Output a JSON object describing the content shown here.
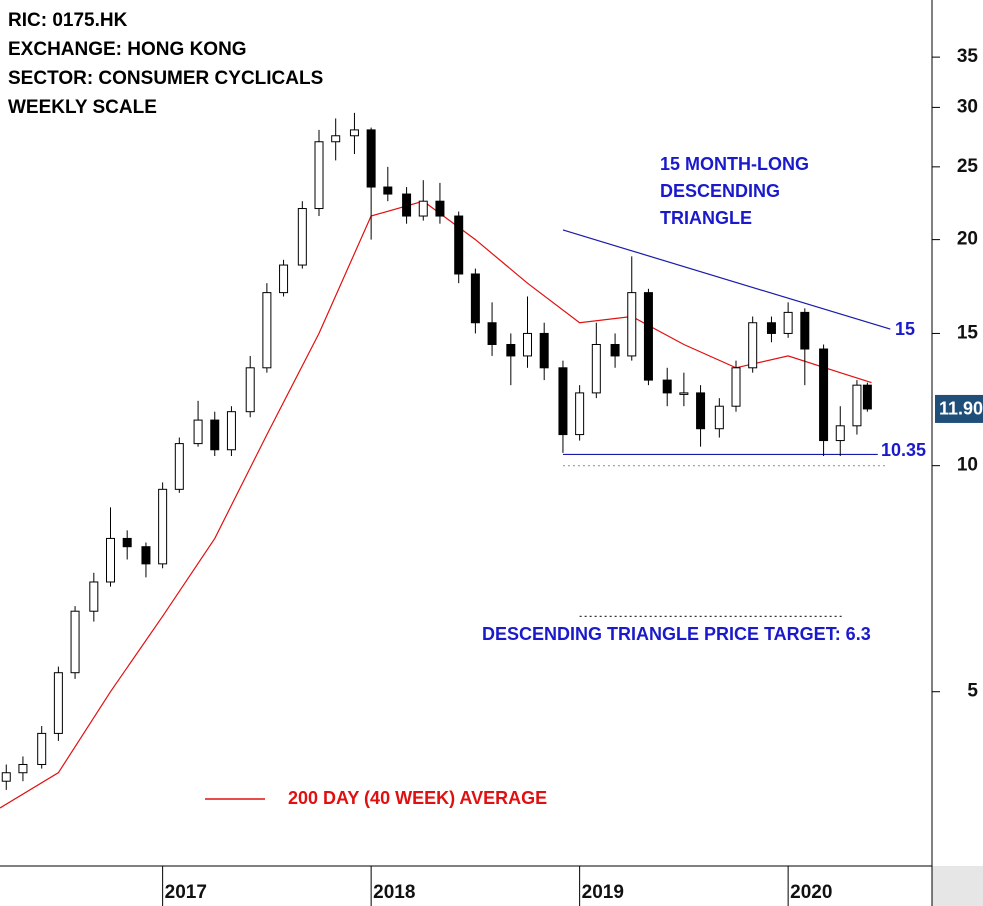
{
  "chart_data": {
    "type": "candlestick",
    "header": [
      "RIC: 0175.HK",
      "EXCHANGE: HONG KONG",
      "SECTOR: CONSUMER CYCLICALS",
      "WEEKLY SCALE"
    ],
    "log_scale": true,
    "xlim": [
      2016.22,
      2020.69
    ],
    "xticks": [
      2017,
      2018,
      2019,
      2020
    ],
    "ylim": [
      2.93,
      41.7
    ],
    "yticks": [
      5,
      10,
      15,
      20,
      25,
      30,
      35
    ],
    "up_color": "#ffffff",
    "down_color": "#000000",
    "x": [
      2016.25,
      2016.33,
      2016.42,
      2016.5,
      2016.58,
      2016.67,
      2016.75,
      2016.83,
      2016.92,
      2017.0,
      2017.08,
      2017.17,
      2017.25,
      2017.33,
      2017.42,
      2017.5,
      2017.58,
      2017.67,
      2017.75,
      2017.83,
      2017.92,
      2018.0,
      2018.08,
      2018.17,
      2018.25,
      2018.33,
      2018.42,
      2018.5,
      2018.58,
      2018.67,
      2018.75,
      2018.83,
      2018.92,
      2019.0,
      2019.08,
      2019.17,
      2019.25,
      2019.33,
      2019.42,
      2019.5,
      2019.58,
      2019.67,
      2019.75,
      2019.83,
      2019.92,
      2020.0,
      2020.08,
      2020.17,
      2020.25,
      2020.33,
      2020.38
    ],
    "open": [
      3.8,
      3.9,
      4.0,
      4.4,
      5.3,
      6.4,
      7.0,
      8.0,
      7.8,
      7.4,
      9.3,
      10.7,
      11.5,
      10.5,
      11.8,
      13.5,
      17.0,
      18.5,
      22.0,
      27.0,
      27.5,
      28.0,
      23.5,
      23.0,
      21.5,
      22.5,
      21.5,
      18.0,
      15.5,
      14.5,
      14.0,
      15.0,
      13.5,
      11.0,
      12.5,
      14.5,
      14.0,
      17.0,
      13.0,
      12.5,
      12.5,
      11.2,
      12.0,
      13.5,
      15.5,
      15.0,
      16.0,
      14.3,
      10.8,
      11.3,
      12.8
    ],
    "high": [
      4.0,
      4.1,
      4.5,
      5.4,
      6.5,
      7.2,
      8.8,
      8.2,
      7.9,
      9.5,
      10.9,
      12.2,
      11.8,
      12.0,
      14.0,
      17.5,
      18.8,
      22.5,
      28.0,
      29.0,
      29.5,
      28.2,
      25.0,
      23.5,
      24.0,
      23.8,
      21.8,
      18.3,
      16.5,
      15.0,
      16.8,
      15.5,
      13.8,
      12.8,
      15.5,
      15.0,
      19.0,
      17.2,
      13.5,
      13.3,
      12.8,
      12.3,
      13.8,
      15.8,
      15.8,
      16.5,
      16.2,
      14.5,
      12.0,
      13.0,
      12.9
    ],
    "low": [
      3.7,
      3.8,
      3.95,
      4.3,
      5.2,
      6.2,
      6.9,
      7.5,
      7.1,
      7.3,
      9.2,
      10.6,
      10.3,
      10.3,
      11.6,
      13.3,
      16.8,
      18.3,
      21.5,
      25.5,
      26.0,
      20.0,
      22.5,
      21.0,
      21.2,
      21.0,
      17.5,
      15.0,
      14.0,
      12.8,
      13.5,
      13.0,
      10.4,
      10.8,
      12.3,
      13.5,
      13.8,
      12.8,
      12.0,
      12.0,
      10.6,
      10.9,
      11.8,
      13.3,
      14.6,
      14.8,
      12.8,
      10.3,
      10.3,
      11.0,
      11.8
    ],
    "close": [
      3.9,
      4.0,
      4.4,
      5.3,
      6.4,
      7.0,
      8.0,
      7.8,
      7.4,
      9.3,
      10.7,
      11.5,
      10.5,
      11.8,
      13.5,
      17.0,
      18.5,
      22.0,
      27.0,
      27.5,
      28.0,
      23.5,
      23.0,
      21.5,
      22.5,
      21.5,
      18.0,
      15.5,
      14.5,
      14.0,
      15.0,
      13.5,
      11.0,
      12.5,
      14.5,
      14.0,
      17.0,
      13.0,
      12.5,
      12.5,
      11.2,
      12.0,
      13.5,
      15.5,
      15.0,
      16.0,
      14.3,
      10.8,
      11.3,
      12.8,
      11.9
    ],
    "last_price_label": "11.90",
    "average": {
      "name": "200 DAY (40 WEEK) AVERAGE",
      "color": "#e01010",
      "x": [
        2016.22,
        2016.5,
        2016.75,
        2017.0,
        2017.25,
        2017.5,
        2017.75,
        2018.0,
        2018.25,
        2018.5,
        2018.75,
        2019.0,
        2019.25,
        2019.5,
        2019.75,
        2020.0,
        2020.25,
        2020.4
      ],
      "values": [
        3.5,
        3.9,
        5.0,
        6.3,
        8.0,
        11.0,
        15.0,
        21.5,
        22.5,
        20.0,
        17.5,
        15.5,
        15.8,
        14.5,
        13.5,
        14.0,
        13.3,
        12.9
      ]
    },
    "lines": [
      {
        "x": [
          2018.92,
          2020.49
        ],
        "y": [
          20.6,
          15.2
        ],
        "color": "#1a1aaa",
        "style": "solid"
      },
      {
        "x": [
          2018.92,
          2020.43
        ],
        "y": [
          10.35,
          10.35
        ],
        "color": "#1a1aaa",
        "style": "solid"
      },
      {
        "x": [
          2018.92,
          2020.47
        ],
        "y": [
          10,
          10
        ],
        "color": "#999999",
        "style": "dotted"
      },
      {
        "x": [
          2019.0,
          2020.27
        ],
        "y": [
          6.3,
          6.3
        ],
        "color": "#333333",
        "style": "dotted"
      }
    ],
    "annotations": [
      "15 MONTH-LONG",
      "DESCENDING",
      "TRIANGLE",
      "15",
      "10.35",
      "DESCENDING TRIANGLE PRICE TARGET: 6.3"
    ]
  }
}
